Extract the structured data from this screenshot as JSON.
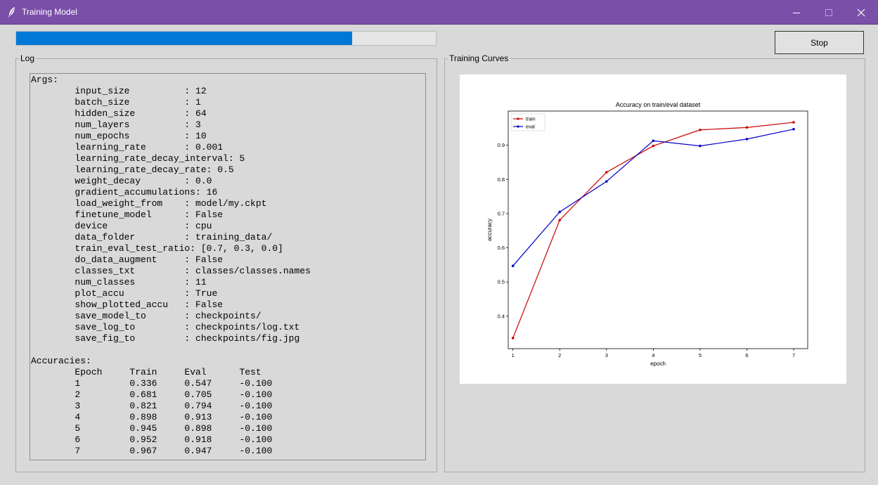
{
  "window": {
    "title": "Training Model",
    "icon": "feather-icon",
    "accent": "#7a4fa8"
  },
  "progress": {
    "fraction": 0.8,
    "color": "#0078d7"
  },
  "stop_button": {
    "label": "Stop"
  },
  "log": {
    "group_label": "Log",
    "lines": [
      "Args:",
      "        input_size          : 12",
      "        batch_size          : 1",
      "        hidden_size         : 64",
      "        num_layers          : 3",
      "        num_epochs          : 10",
      "        learning_rate       : 0.001",
      "        learning_rate_decay_interval: 5",
      "        learning_rate_decay_rate: 0.5",
      "        weight_decay        : 0.0",
      "        gradient_accumulations: 16",
      "        load_weight_from    : model/my.ckpt",
      "        finetune_model      : False",
      "        device              : cpu",
      "        data_folder         : training_data/",
      "        train_eval_test_ratio: [0.7, 0.3, 0.0]",
      "        do_data_augment     : False",
      "        classes_txt         : classes/classes.names",
      "        num_classes         : 11",
      "        plot_accu           : True",
      "        show_plotted_accu   : False",
      "        save_model_to       : checkpoints/",
      "        save_log_to         : checkpoints/log.txt",
      "        save_fig_to         : checkpoints/fig.jpg",
      "",
      "Accuracies:",
      "        Epoch     Train     Eval      Test",
      "        1         0.336     0.547     -0.100",
      "        2         0.681     0.705     -0.100",
      "        3         0.821     0.794     -0.100",
      "        4         0.898     0.913     -0.100",
      "        5         0.945     0.898     -0.100",
      "        6         0.952     0.918     -0.100",
      "        7         0.967     0.947     -0.100"
    ]
  },
  "curves": {
    "group_label": "Training Curves"
  },
  "chart_data": {
    "type": "line",
    "title": "Accuracy on train/eval dataset",
    "xlabel": "epoch",
    "ylabel": "accuracy",
    "x": [
      1,
      2,
      3,
      4,
      5,
      6,
      7
    ],
    "xlim": [
      0.9,
      7.3
    ],
    "ylim": [
      0.305,
      1.0
    ],
    "yticks": [
      0.4,
      0.5,
      0.6,
      0.7,
      0.8,
      0.9
    ],
    "grid": false,
    "legend_position": "top-left",
    "series": [
      {
        "name": "train",
        "color": "#cc0000",
        "values": [
          0.336,
          0.681,
          0.821,
          0.898,
          0.945,
          0.952,
          0.967
        ]
      },
      {
        "name": "eval",
        "color": "#0000cc",
        "values": [
          0.547,
          0.705,
          0.794,
          0.913,
          0.898,
          0.918,
          0.947
        ]
      }
    ]
  }
}
